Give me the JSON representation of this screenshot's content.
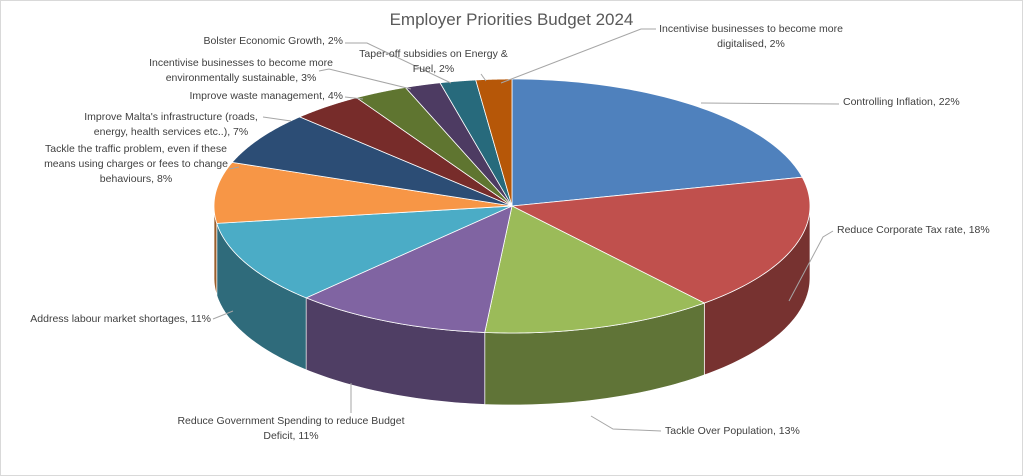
{
  "chart_data": {
    "type": "pie",
    "title": "Employer Priorities Budget 2024",
    "style": "3d-exploded-none",
    "slices": [
      {
        "label": "Controlling Inflation",
        "value": 22,
        "text": "Controlling Inflation, 22%",
        "color": "#4f81bd"
      },
      {
        "label": "Reduce Corporate Tax rate",
        "value": 18,
        "text": "Reduce Corporate Tax rate, 18%",
        "color": "#c0504d"
      },
      {
        "label": "Tackle Over Population",
        "value": 13,
        "text": "Tackle Over Population, 13%",
        "color": "#9bbb59"
      },
      {
        "label": "Reduce Government Spending to reduce Budget Deficit",
        "value": 11,
        "text": "Reduce Government Spending to reduce Budget Deficit, 11%",
        "color": "#8064a2"
      },
      {
        "label": "Address labour market shortages",
        "value": 11,
        "text": "Address labour market shortages, 11%",
        "color": "#4bacc6"
      },
      {
        "label": "Tackle the traffic problem, even if these means using charges or fees to change behaviours",
        "value": 8,
        "text": "Tackle the traffic problem, even if these means using charges or fees to change behaviours, 8%",
        "color": "#f79646"
      },
      {
        "label": "Improve Malta's infrastructure (roads, energy, health services etc..)",
        "value": 7,
        "text": "Improve Malta's infrastructure (roads, energy, health services etc..), 7%",
        "color": "#2c4d75"
      },
      {
        "label": "Improve waste management",
        "value": 4,
        "text": "Improve waste management, 4%",
        "color": "#772c2a"
      },
      {
        "label": "Incentivise businesses to become more environmentally sustainable",
        "value": 3,
        "text": "Incentivise businesses to become more environmentally sustainable, 3%",
        "color": "#5f7530"
      },
      {
        "label": "Bolster Economic Growth",
        "value": 2,
        "text": "Bolster Economic Growth, 2%",
        "color": "#4d3b62"
      },
      {
        "label": "Taper-off subsidies on Energy & Fuel",
        "value": 2,
        "text": "Taper-off subsidies on Energy & Fuel, 2%",
        "color": "#276a7c"
      },
      {
        "label": "Incentivise businesses to become more digitalised",
        "value": 2,
        "text": "Incentivise businesses to become more digitalised, 2%",
        "color": "#b65708"
      }
    ]
  }
}
